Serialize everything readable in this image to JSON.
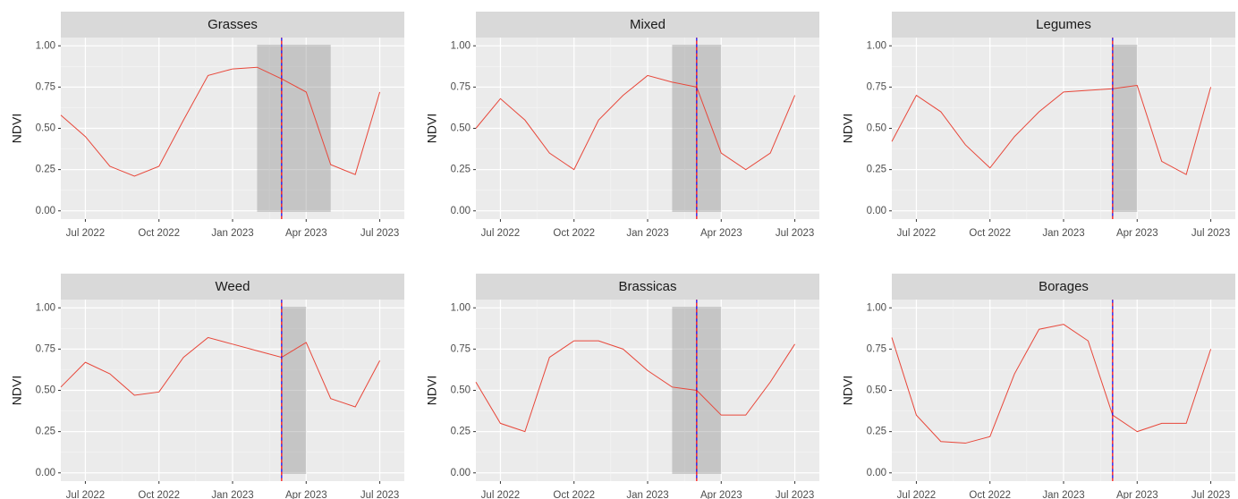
{
  "chart_data": [
    {
      "type": "line",
      "title": "Grasses",
      "y_label": "NDVI",
      "x": [
        "2022-06",
        "2022-07",
        "2022-08",
        "2022-09",
        "2022-10",
        "2022-11",
        "2022-12",
        "2023-01",
        "2023-02",
        "2023-03",
        "2023-04",
        "2023-05",
        "2023-06",
        "2023-07"
      ],
      "series": [
        {
          "color": "#e8473a",
          "values": [
            0.58,
            0.45,
            0.27,
            0.21,
            0.27,
            0.55,
            0.82,
            0.86,
            0.87,
            0.8,
            0.72,
            0.28,
            0.22,
            0.72
          ]
        }
      ],
      "shade": [
        "2023-02",
        "2023-05"
      ],
      "vlines": [
        {
          "x": "2023-03",
          "color": "#0000ff"
        },
        {
          "x": "2023-03",
          "color": "#ff0000"
        }
      ],
      "xlim": [
        "2022-06",
        "2023-08"
      ],
      "xticks": [
        {
          "value": "2022-07",
          "label": "Jul 2022"
        },
        {
          "value": "2022-10",
          "label": "Oct 2022"
        },
        {
          "value": "2023-01",
          "label": "Jan 2023"
        },
        {
          "value": "2023-04",
          "label": "Apr 2023"
        },
        {
          "value": "2023-07",
          "label": "Jul 2023"
        }
      ],
      "ylim": [
        -0.05,
        1.05
      ],
      "yticks": [
        {
          "value": 0,
          "label": "0.00"
        },
        0.25,
        {
          "value": 0.5,
          "label": "0.50"
        },
        0.75,
        {
          "value": 1,
          "label": "1.00"
        }
      ],
      "grid": true
    },
    {
      "type": "line",
      "title": "Mixed",
      "y_label": "NDVI",
      "x": [
        "2022-06",
        "2022-07",
        "2022-08",
        "2022-09",
        "2022-10",
        "2022-11",
        "2022-12",
        "2023-01",
        "2023-02",
        "2023-03",
        "2023-04",
        "2023-05",
        "2023-06",
        "2023-07"
      ],
      "series": [
        {
          "color": "#e8473a",
          "values": [
            0.5,
            0.68,
            0.55,
            0.35,
            0.25,
            0.55,
            0.7,
            0.82,
            0.78,
            0.75,
            0.35,
            0.25,
            0.35,
            0.7
          ]
        }
      ],
      "shade": [
        "2023-02",
        "2023-04"
      ],
      "vlines": [
        {
          "x": "2023-03",
          "color": "#0000ff"
        },
        {
          "x": "2023-03",
          "color": "#ff0000"
        }
      ],
      "xlim": [
        "2022-06",
        "2023-08"
      ],
      "xticks": [
        {
          "value": "2022-07",
          "label": "Jul 2022"
        },
        {
          "value": "2022-10",
          "label": "Oct 2022"
        },
        {
          "value": "2023-01",
          "label": "Jan 2023"
        },
        {
          "value": "2023-04",
          "label": "Apr 2023"
        },
        {
          "value": "2023-07",
          "label": "Jul 2023"
        }
      ],
      "ylim": [
        -0.05,
        1.05
      ],
      "yticks": [
        {
          "value": 0,
          "label": "0.00"
        },
        0.25,
        {
          "value": 0.5,
          "label": "0.50"
        },
        0.75,
        {
          "value": 1,
          "label": "1.00"
        }
      ],
      "grid": true
    },
    {
      "type": "line",
      "title": "Legumes",
      "y_label": "NDVI",
      "x": [
        "2022-06",
        "2022-07",
        "2022-08",
        "2022-09",
        "2022-10",
        "2022-11",
        "2022-12",
        "2023-01",
        "2023-02",
        "2023-03",
        "2023-04",
        "2023-05",
        "2023-06",
        "2023-07"
      ],
      "series": [
        {
          "color": "#e8473a",
          "values": [
            0.42,
            0.7,
            0.6,
            0.4,
            0.26,
            0.45,
            0.6,
            0.72,
            0.73,
            0.74,
            0.76,
            0.3,
            0.22,
            0.75
          ]
        }
      ],
      "shade": [
        "2023-03",
        "2023-04"
      ],
      "vlines": [
        {
          "x": "2023-03",
          "color": "#0000ff"
        },
        {
          "x": "2023-03",
          "color": "#ff0000"
        }
      ],
      "xlim": [
        "2022-06",
        "2023-08"
      ],
      "xticks": [
        {
          "value": "2022-07",
          "label": "Jul 2022"
        },
        {
          "value": "2022-10",
          "label": "Oct 2022"
        },
        {
          "value": "2023-01",
          "label": "Jan 2023"
        },
        {
          "value": "2023-04",
          "label": "Apr 2023"
        },
        {
          "value": "2023-07",
          "label": "Jul 2023"
        }
      ],
      "ylim": [
        -0.05,
        1.05
      ],
      "yticks": [
        {
          "value": 0,
          "label": "0.00"
        },
        0.25,
        {
          "value": 0.5,
          "label": "0.50"
        },
        0.75,
        {
          "value": 1,
          "label": "1.00"
        }
      ],
      "grid": true
    },
    {
      "type": "line",
      "title": "Weed",
      "y_label": "NDVI",
      "x": [
        "2022-06",
        "2022-07",
        "2022-08",
        "2022-09",
        "2022-10",
        "2022-11",
        "2022-12",
        "2023-01",
        "2023-02",
        "2023-03",
        "2023-04",
        "2023-05",
        "2023-06",
        "2023-07"
      ],
      "series": [
        {
          "color": "#e8473a",
          "values": [
            0.52,
            0.67,
            0.6,
            0.47,
            0.49,
            0.7,
            0.82,
            0.78,
            0.74,
            0.7,
            0.79,
            0.45,
            0.4,
            0.68
          ]
        }
      ],
      "shade": [
        "2023-03",
        "2023-04"
      ],
      "vlines": [
        {
          "x": "2023-03",
          "color": "#0000ff"
        },
        {
          "x": "2023-03",
          "color": "#ff0000"
        }
      ],
      "xlim": [
        "2022-06",
        "2023-08"
      ],
      "xticks": [
        {
          "value": "2022-07",
          "label": "Jul 2022"
        },
        {
          "value": "2022-10",
          "label": "Oct 2022"
        },
        {
          "value": "2023-01",
          "label": "Jan 2023"
        },
        {
          "value": "2023-04",
          "label": "Apr 2023"
        },
        {
          "value": "2023-07",
          "label": "Jul 2023"
        }
      ],
      "ylim": [
        -0.05,
        1.05
      ],
      "yticks": [
        {
          "value": 0,
          "label": "0.00"
        },
        0.25,
        {
          "value": 0.5,
          "label": "0.50"
        },
        0.75,
        {
          "value": 1,
          "label": "1.00"
        }
      ],
      "grid": true
    },
    {
      "type": "line",
      "title": "Brassicas",
      "y_label": "NDVI",
      "x": [
        "2022-06",
        "2022-07",
        "2022-08",
        "2022-09",
        "2022-10",
        "2022-11",
        "2022-12",
        "2023-01",
        "2023-02",
        "2023-03",
        "2023-04",
        "2023-05",
        "2023-06",
        "2023-07"
      ],
      "series": [
        {
          "color": "#e8473a",
          "values": [
            0.55,
            0.3,
            0.25,
            0.7,
            0.8,
            0.8,
            0.75,
            0.62,
            0.52,
            0.5,
            0.35,
            0.35,
            0.55,
            0.78
          ]
        }
      ],
      "shade": [
        "2023-02",
        "2023-04"
      ],
      "vlines": [
        {
          "x": "2023-03",
          "color": "#0000ff"
        },
        {
          "x": "2023-03",
          "color": "#ff0000"
        }
      ],
      "xlim": [
        "2022-06",
        "2023-08"
      ],
      "xticks": [
        {
          "value": "2022-07",
          "label": "Jul 2022"
        },
        {
          "value": "2022-10",
          "label": "Oct 2022"
        },
        {
          "value": "2023-01",
          "label": "Jan 2023"
        },
        {
          "value": "2023-04",
          "label": "Apr 2023"
        },
        {
          "value": "2023-07",
          "label": "Jul 2023"
        }
      ],
      "ylim": [
        -0.05,
        1.05
      ],
      "yticks": [
        {
          "value": 0,
          "label": "0.00"
        },
        0.25,
        {
          "value": 0.5,
          "label": "0.50"
        },
        0.75,
        {
          "value": 1,
          "label": "1.00"
        }
      ],
      "grid": true
    },
    {
      "type": "line",
      "title": "Borages",
      "y_label": "NDVI",
      "x": [
        "2022-06",
        "2022-07",
        "2022-08",
        "2022-09",
        "2022-10",
        "2022-11",
        "2022-12",
        "2023-01",
        "2023-02",
        "2023-03",
        "2023-04",
        "2023-05",
        "2023-06",
        "2023-07"
      ],
      "series": [
        {
          "color": "#e8473a",
          "values": [
            0.82,
            0.35,
            0.19,
            0.18,
            0.22,
            0.6,
            0.87,
            0.9,
            0.8,
            0.35,
            0.25,
            0.3,
            0.3,
            0.75
          ]
        }
      ],
      "vlines": [
        {
          "x": "2023-03",
          "color": "#0000ff"
        },
        {
          "x": "2023-03",
          "color": "#ff0000"
        }
      ],
      "xlim": [
        "2022-06",
        "2023-08"
      ],
      "xticks": [
        {
          "value": "2022-07",
          "label": "Jul 2022"
        },
        {
          "value": "2022-10",
          "label": "Oct 2022"
        },
        {
          "value": "2023-01",
          "label": "Jan 2023"
        },
        {
          "value": "2023-04",
          "label": "Apr 2023"
        },
        {
          "value": "2023-07",
          "label": "Jul 2023"
        }
      ],
      "ylim": [
        -0.05,
        1.05
      ],
      "yticks": [
        {
          "value": 0,
          "label": "0.00"
        },
        0.25,
        {
          "value": 0.5,
          "label": "0.50"
        },
        0.75,
        {
          "value": 1,
          "label": "1.00"
        }
      ],
      "grid": true
    }
  ]
}
